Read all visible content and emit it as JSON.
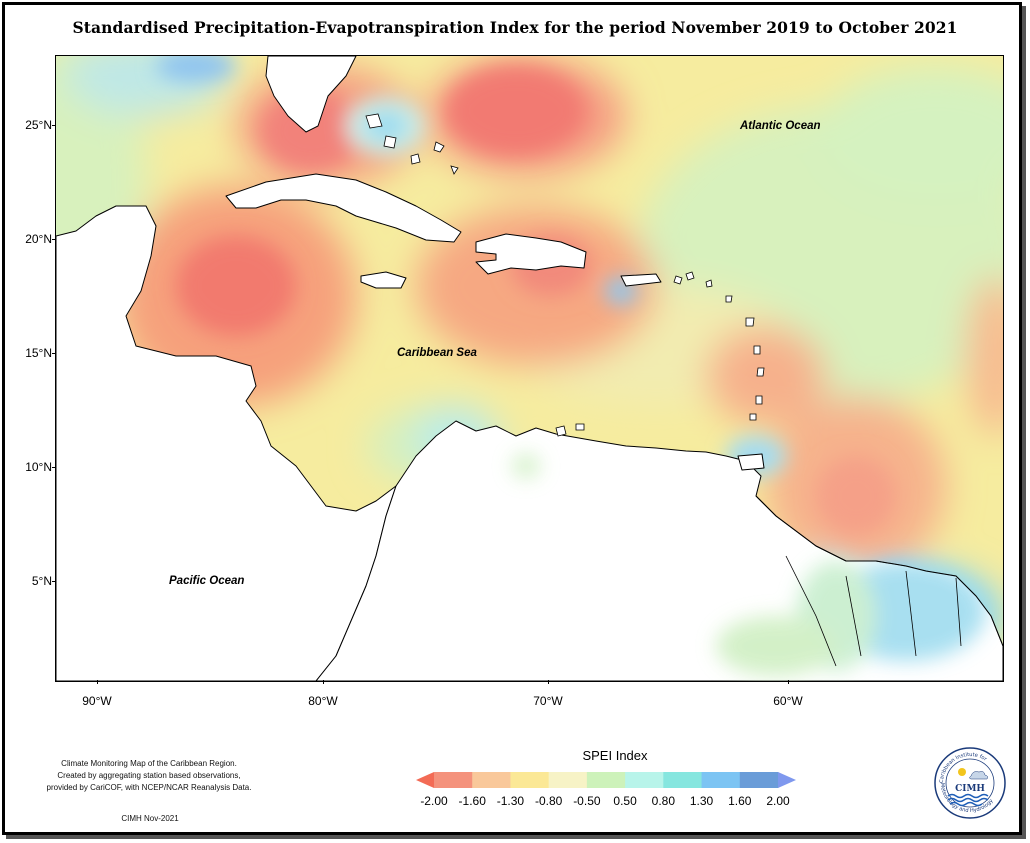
{
  "title": "Standardised Precipitation-Evapotranspiration Index for the period November 2019 to October 2021",
  "map": {
    "lat_labels": [
      "25°N",
      "20°N",
      "15°N",
      "10°N",
      "5°N"
    ],
    "lon_labels": [
      "90°W",
      "80°W",
      "70°W",
      "60°W"
    ],
    "ocean_labels": {
      "atlantic": "Atlantic Ocean",
      "caribbean": "Caribbean Sea",
      "pacific": "Pacific Ocean"
    },
    "extent": {
      "lon": [
        -92,
        -50
      ],
      "lat": [
        1,
        28
      ]
    },
    "colors": {
      "land": "#ffffff",
      "coast": "#000000"
    }
  },
  "legend": {
    "title": "SPEI Index",
    "ticks": [
      "-2.00",
      "-1.60",
      "-1.30",
      "-0.80",
      "-0.50",
      "0.50",
      "0.80",
      "1.30",
      "1.60",
      "2.00"
    ],
    "colors": [
      "#f36b55",
      "#f4927c",
      "#f9c89a",
      "#fbe896",
      "#f7f3c6",
      "#cdf2ba",
      "#b8f4ea",
      "#86e6df",
      "#7cc4f3",
      "#6a9cd8",
      "#7f98ee"
    ]
  },
  "credits": {
    "line1": "Climate Monitoring Map of the Caribbean Region.",
    "line2": "Created by aggregating station based observations,",
    "line3": "provided by CariCOF, with NCEP/NCAR Reanalysis Data.",
    "date": "CIMH Nov-2021"
  },
  "logo": {
    "name": "CIMH",
    "ring_top": "Caribbean Institute for",
    "ring_bottom": "Meteorology and Hydrology"
  }
}
